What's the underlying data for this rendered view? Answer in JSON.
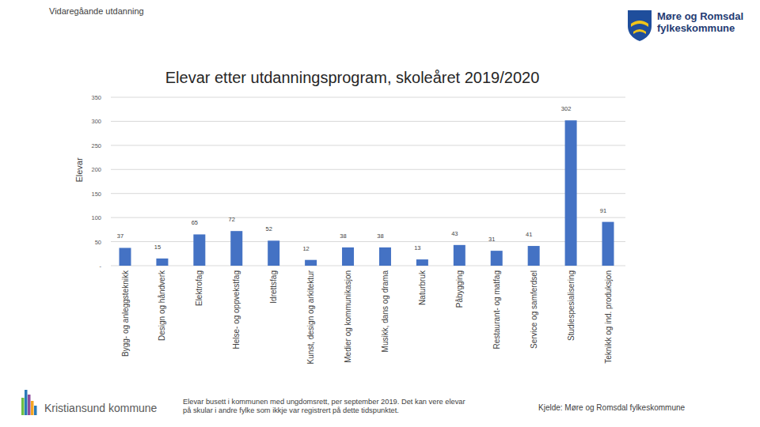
{
  "chart_data": {
    "type": "bar",
    "title": "Elevar etter utdanningsprogram, skoleåret 2019/2020",
    "y_label": "Elevar",
    "categories": [
      "Bygg- og anleggsteknikk",
      "Design og håndverk",
      "Elektrofag",
      "Helse- og oppvekstfag",
      "Idrettsfag",
      "Kunst, design og arkitektur",
      "Medier og kommunikasjon",
      "Musikk, dans og drama",
      "Naturbruk",
      "Påbygging",
      "Restaurant- og matfag",
      "Service og samferdsel",
      "Studiespesialisering",
      "Teknikk og ind. produksjon"
    ],
    "values": [
      37,
      15,
      65,
      72,
      52,
      12,
      38,
      38,
      13,
      43,
      31,
      41,
      302,
      91
    ],
    "color": "#4472c4",
    "ylim": [
      0,
      350
    ],
    "yticks": [
      {
        "value": 0,
        "label": "-"
      },
      50,
      100,
      150,
      200,
      250,
      300,
      350
    ],
    "grid": true,
    "data_labels": true
  },
  "page": {
    "header": "Vidaregåande utdanning",
    "logo": [
      "Møre og Romsdal",
      "fylkeskommune"
    ],
    "municipality": "Kristiansund kommune",
    "note": [
      "Elevar busett i kommunen med ungdomsrett, per september 2019. Det kan vere elevar",
      "på skular i andre fylke som ikkje var registrert på dette tidspunktet."
    ],
    "source": "Kjelde: Møre og Romsdal fylkeskommune"
  }
}
